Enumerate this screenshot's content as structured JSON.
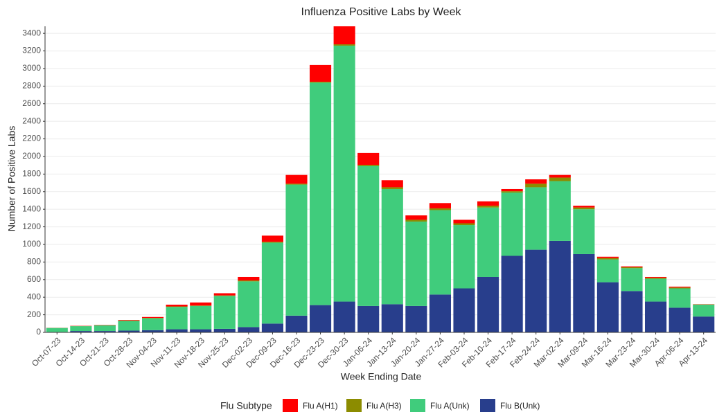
{
  "chart_data": {
    "type": "stacked_bar",
    "title": "Influenza Positive Labs by Week",
    "x_label": "Week Ending Date",
    "y_label": "Number of Positive Labs",
    "legend_title": "Flu Subtype",
    "categories": [
      "Oct-07-23",
      "Oct-14-23",
      "Oct-21-23",
      "Oct-28-23",
      "Nov-04-23",
      "Nov-11-23",
      "Nov-18-23",
      "Nov-25-23",
      "Dec-02-23",
      "Dec-09-23",
      "Dec-16-23",
      "Dec-23-23",
      "Dec-30-23",
      "Jan-06-24",
      "Jan-13-24",
      "Jan-20-24",
      "Jan-27-24",
      "Feb-03-24",
      "Feb-10-24",
      "Feb-17-24",
      "Feb-24-24",
      "Mar-02-24",
      "Mar-09-24",
      "Mar-16-24",
      "Mar-23-24",
      "Mar-30-24",
      "Apr-06-24",
      "Apr-13-24"
    ],
    "series": [
      {
        "name": "Flu A(H1)",
        "color": "#ff0000",
        "values": [
          1,
          3,
          3,
          6,
          10,
          20,
          35,
          25,
          40,
          70,
          100,
          190,
          205,
          135,
          80,
          50,
          60,
          40,
          50,
          25,
          50,
          30,
          20,
          15,
          10,
          10,
          10,
          2
        ]
      },
      {
        "name": "Flu A(H3)",
        "color": "#8c8c00",
        "values": [
          1,
          2,
          2,
          4,
          5,
          5,
          5,
          5,
          10,
          10,
          10,
          10,
          15,
          15,
          20,
          20,
          20,
          20,
          20,
          15,
          40,
          40,
          20,
          15,
          10,
          10,
          10,
          3
        ]
      },
      {
        "name": "Flu A(Unk)",
        "color": "#40cc7c",
        "values": [
          45,
          55,
          65,
          110,
          135,
          255,
          265,
          375,
          520,
          920,
          1490,
          2530,
          2910,
          1590,
          1310,
          960,
          960,
          720,
          790,
          720,
          710,
          680,
          510,
          260,
          260,
          260,
          220,
          135
        ]
      },
      {
        "name": "Flu B(Unk)",
        "color": "#283e8c",
        "values": [
          5,
          15,
          15,
          20,
          25,
          35,
          35,
          40,
          60,
          100,
          190,
          310,
          350,
          300,
          320,
          300,
          430,
          500,
          630,
          870,
          940,
          1040,
          890,
          570,
          470,
          350,
          280,
          180
        ]
      }
    ],
    "ylim": [
      0,
      3480
    ],
    "yticks": [
      0,
      200,
      400,
      600,
      800,
      1000,
      1200,
      1400,
      1600,
      1800,
      2000,
      2200,
      2400,
      2600,
      2800,
      3000,
      3200,
      3400
    ],
    "grid": true
  }
}
